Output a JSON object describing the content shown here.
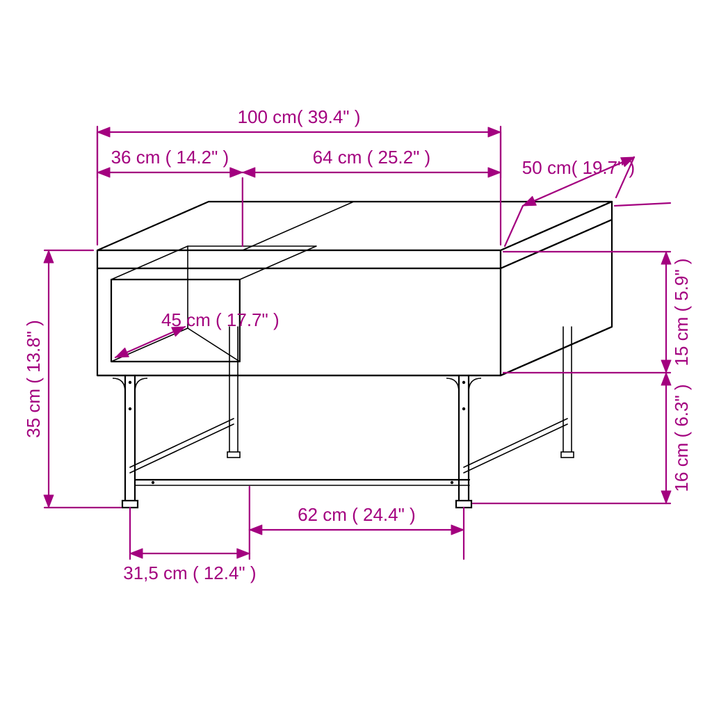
{
  "colors": {
    "dimension": "#a3007f",
    "furniture_stroke": "#000000",
    "background": "#ffffff"
  },
  "stroke_widths": {
    "dimension": 2.2,
    "furniture": 2.2,
    "furniture_thin": 1.6
  },
  "arrow": {
    "length": 18,
    "half": 7
  },
  "dimensions": {
    "top_total": "100 cm( 39.4\" )",
    "top_left": "36 cm ( 14.2\" )",
    "top_right": "64 cm ( 25.2\" )",
    "depth": "50 cm( 19.7\" )",
    "height_total": "35 cm ( 13.8\" )",
    "shelf_depth": "45 cm ( 17.7\" )",
    "upper_h": "15 cm ( 5.9\" )",
    "lower_h": "16 cm ( 6.3\" )",
    "bottom_left": "31,5 cm ( 12.4\" )",
    "bottom_right": "62 cm ( 24.4\" )"
  }
}
